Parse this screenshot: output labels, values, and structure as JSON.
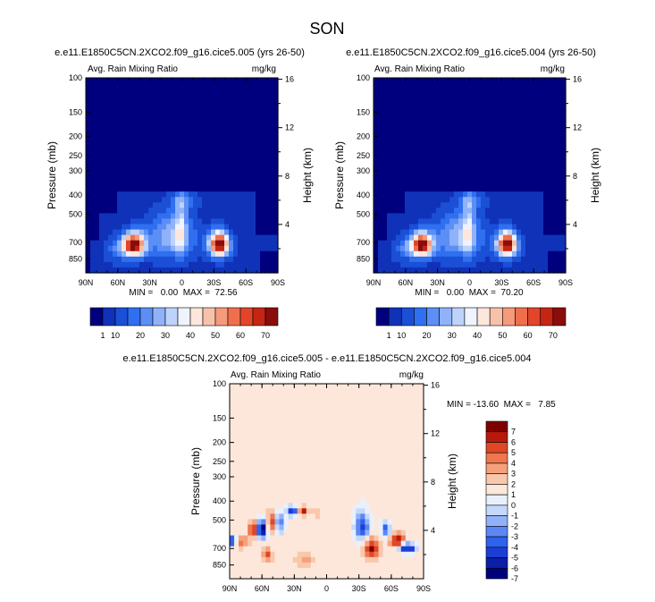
{
  "page": {
    "title": "SON"
  },
  "palettes": {
    "abs_colors": [
      "#00007f",
      "#1032b8",
      "#1a4fd6",
      "#2f6ff0",
      "#5c8ff5",
      "#8fb2f8",
      "#bdd3fb",
      "#eef3fe",
      "#fde6dc",
      "#f8c1aa",
      "#f59a7b",
      "#ef6f4d",
      "#e2452a",
      "#c62514",
      "#8a0d0d"
    ],
    "diff_colors": [
      "#00007f",
      "#0c1fa8",
      "#1b3fd4",
      "#2f62ef",
      "#5c87f5",
      "#93b1f8",
      "#c5d8fb",
      "#e9f0fd",
      "#fde7da",
      "#f9c7ab",
      "#f5a17c",
      "#ef774f",
      "#e04726",
      "#b71a0c",
      "#7f0000"
    ]
  },
  "chart_data": [
    {
      "id": "panel1",
      "type": "heatmap",
      "title": "e.e11.E1850C5CN.2XCO2.f09_g16.cice5.005 (yrs 26-50)",
      "left_label": "Avg. Rain Mixing Ratio",
      "right_label": "mg/kg",
      "xlabel": "",
      "ylabel": "Pressure (mb)",
      "ylabel_right": "Height (km)",
      "x_ticks": [
        "90N",
        "60N",
        "30N",
        "0",
        "30S",
        "60S",
        "90S"
      ],
      "x_tick_values": [
        90,
        60,
        30,
        0,
        -30,
        -60,
        -90
      ],
      "y_ticks": [
        "100",
        "150",
        "200",
        "250",
        "300",
        "400",
        "500",
        "700",
        "850"
      ],
      "y_tick_values": [
        100,
        150,
        200,
        250,
        300,
        400,
        500,
        700,
        850
      ],
      "height_ticks": [
        "16",
        "12",
        "8",
        "4"
      ],
      "height_tick_values": [
        16,
        12,
        8,
        4
      ],
      "ylim": [
        100,
        1000
      ],
      "stats": "MIN =   0.00  MAX =  72.56",
      "min": 0.0,
      "max": 72.56,
      "field": "abs",
      "field_params": {
        "peak1": 72.56,
        "peak2": 71.0
      },
      "colorbar": {
        "orientation": "horizontal",
        "tick_labels": [
          "1",
          "10",
          "20",
          "30",
          "40",
          "50",
          "60",
          "70"
        ],
        "levels": [
          1,
          5,
          10,
          15,
          20,
          25,
          30,
          35,
          40,
          45,
          50,
          55,
          60,
          65,
          70
        ]
      }
    },
    {
      "id": "panel2",
      "type": "heatmap",
      "title": "e.e11.E1850C5CN.2XCO2.f09_g16.cice5.004 (yrs 26-50)",
      "left_label": "Avg. Rain Mixing Ratio",
      "right_label": "mg/kg",
      "xlabel": "",
      "ylabel": "Pressure (mb)",
      "ylabel_right": "Height (km)",
      "x_ticks": [
        "90N",
        "60N",
        "30N",
        "0",
        "30S",
        "60S",
        "90S"
      ],
      "x_tick_values": [
        90,
        60,
        30,
        0,
        -30,
        -60,
        -90
      ],
      "y_ticks": [
        "100",
        "150",
        "200",
        "250",
        "300",
        "400",
        "500",
        "700",
        "850"
      ],
      "y_tick_values": [
        100,
        150,
        200,
        250,
        300,
        400,
        500,
        700,
        850
      ],
      "height_ticks": [
        "16",
        "12",
        "8",
        "4"
      ],
      "height_tick_values": [
        16,
        12,
        8,
        4
      ],
      "ylim": [
        100,
        1000
      ],
      "stats": "MIN =   0.00  MAX =  70.20",
      "min": 0.0,
      "max": 70.2,
      "field": "abs",
      "field_params": {
        "peak1": 69.0,
        "peak2": 70.2
      },
      "colorbar": {
        "orientation": "horizontal",
        "tick_labels": [
          "1",
          "10",
          "20",
          "30",
          "40",
          "50",
          "60",
          "70"
        ],
        "levels": [
          1,
          5,
          10,
          15,
          20,
          25,
          30,
          35,
          40,
          45,
          50,
          55,
          60,
          65,
          70
        ]
      }
    },
    {
      "id": "panel3",
      "type": "heatmap",
      "title": "e.e11.E1850C5CN.2XCO2.f09_g16.cice5.005 - e.e11.E1850C5CN.2XCO2.f09_g16.cice5.004",
      "left_label": "Avg. Rain Mixing Ratio",
      "right_label": "mg/kg",
      "xlabel": "",
      "ylabel": "Pressure (mb)",
      "ylabel_right": "Height (km)",
      "x_ticks": [
        "90N",
        "60N",
        "30N",
        "0",
        "30S",
        "60S",
        "90S"
      ],
      "x_tick_values": [
        90,
        60,
        30,
        0,
        -30,
        -60,
        -90
      ],
      "y_ticks": [
        "100",
        "150",
        "200",
        "250",
        "300",
        "400",
        "500",
        "700",
        "850"
      ],
      "y_tick_values": [
        100,
        150,
        200,
        250,
        300,
        400,
        500,
        700,
        850
      ],
      "height_ticks": [
        "16",
        "12",
        "8",
        "4"
      ],
      "height_tick_values": [
        16,
        12,
        8,
        4
      ],
      "ylim": [
        100,
        1000
      ],
      "stats": "MIN = -13.60  MAX =   7.85",
      "min": -13.6,
      "max": 7.85,
      "field": "diff",
      "field_params": {},
      "colorbar": {
        "orientation": "vertical",
        "tick_labels": [
          "7",
          "6",
          "5",
          "4",
          "3",
          "2",
          "1",
          "0",
          "-1",
          "-2",
          "-3",
          "-4",
          "-5",
          "-6",
          "-7"
        ],
        "levels": [
          7,
          6,
          5,
          4,
          3,
          2,
          1,
          0,
          -1,
          -2,
          -3,
          -4,
          -5,
          -6,
          -7
        ]
      }
    }
  ]
}
